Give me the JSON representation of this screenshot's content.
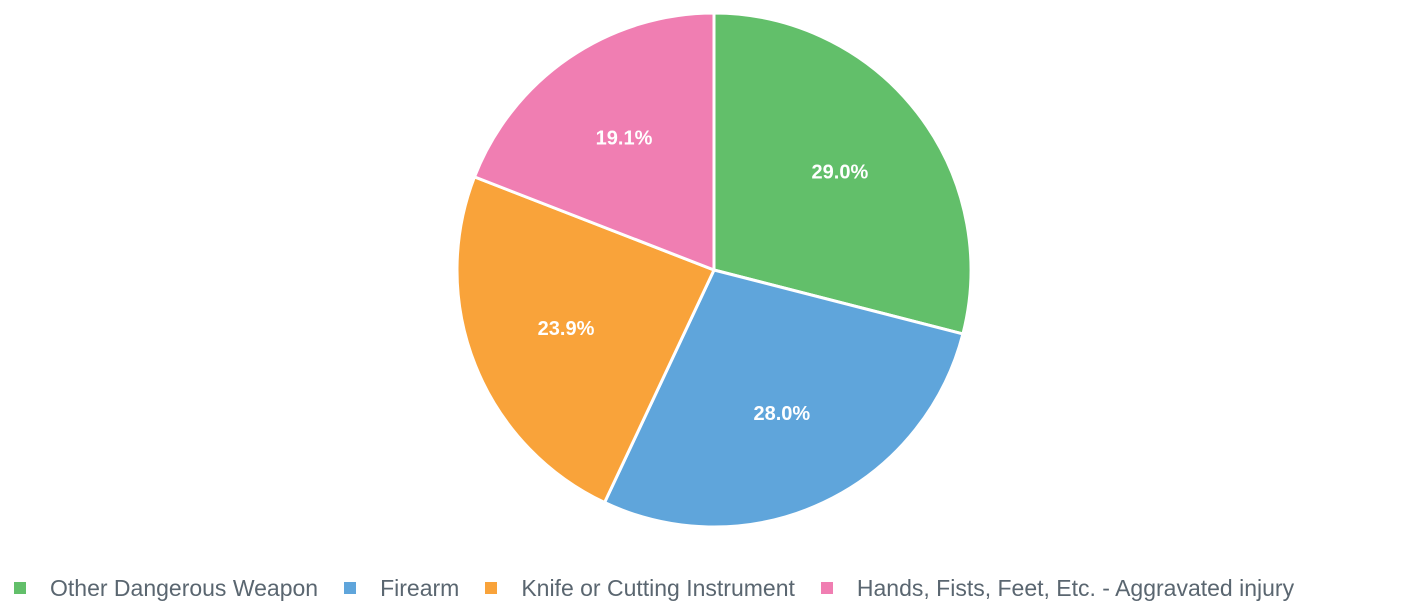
{
  "chart_data": {
    "type": "pie",
    "title": "",
    "legend_position": "bottom",
    "slices": [
      {
        "name": "Other Dangerous Weapon",
        "value": 29.0,
        "label": "29.0%",
        "color": "#62bf6a"
      },
      {
        "name": "Firearm",
        "value": 28.0,
        "label": "28.0%",
        "color": "#5fa5db"
      },
      {
        "name": "Knife or Cutting Instrument",
        "value": 23.9,
        "label": "23.9%",
        "color": "#f9a33a"
      },
      {
        "name": "Hands, Fists, Feet, Etc. - Aggravated injury",
        "value": 19.1,
        "label": "19.1%",
        "color": "#f07eb2"
      }
    ]
  }
}
